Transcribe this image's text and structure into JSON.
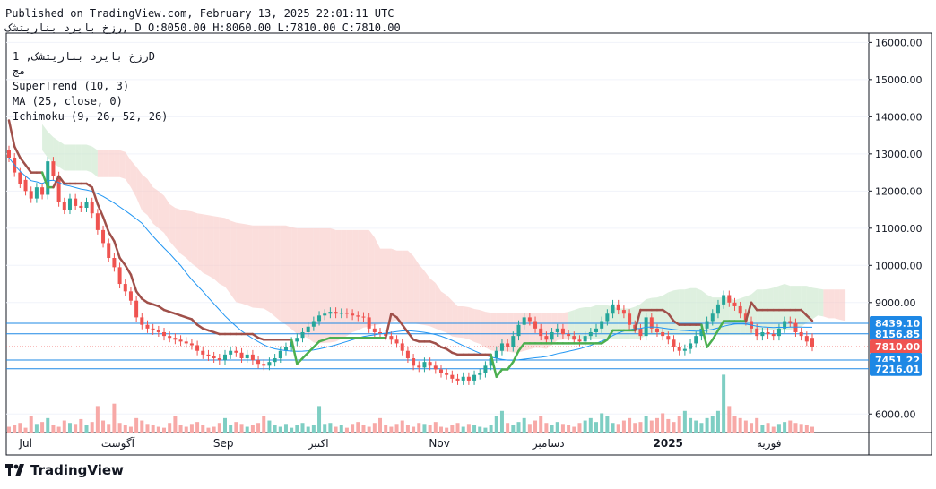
{
  "header": {
    "published": "Published on TradingView.com, February 13, 2025 22:01:11 UTC",
    "ohlc": "رزخ بایرد بناریتشک, D O:8050.00 H:8060.00 L:7810.00 C:7810.00"
  },
  "legend": {
    "symbol_line": "رزخ بایرد بناریتشک, 1D",
    "exchange": "مج",
    "supertrend": "SuperTrend (10, 3)",
    "ma": "MA (25, close, 0)",
    "ichimoku": "Ichimoku (9, 26, 52, 26)"
  },
  "brand": {
    "name": "TradingView"
  },
  "colors": {
    "up": "#26a69a",
    "down": "#ef5350",
    "supertrend_up": "#4caf50",
    "supertrend_down": "#a0504a",
    "ma": "#2196f3",
    "cloud_bear": "#f8c8c4",
    "cloud_bull": "#c8e6c9",
    "hline": "#1e88e5"
  },
  "chart_data": {
    "type": "candlestick",
    "title": "رزخ بایرد بناریتشک, 1D",
    "ylim": [
      5500,
      16250
    ],
    "y_ticks": [
      "16000.00",
      "15000.00",
      "14000.00",
      "13000.00",
      "12000.00",
      "11000.00",
      "10000.00",
      "9000.00",
      "6000.00"
    ],
    "x_labels": [
      "Jul",
      "آگوست",
      "Sep",
      "اکتبر",
      "Nov",
      "دسامبر",
      "2025",
      "فوریه"
    ],
    "price_levels": [
      {
        "label": "8439.10",
        "value": 8439.1,
        "color": "#1e88e5"
      },
      {
        "label": "8156.85",
        "value": 8156.85,
        "color": "#1e88e5"
      },
      {
        "label": "7810.00",
        "value": 7810.0,
        "color": "#ef5350"
      },
      {
        "label": "7451.22",
        "value": 7451.22,
        "color": "#1e88e5"
      },
      {
        "label": "7216.01",
        "value": 7216.01,
        "color": "#1e88e5"
      }
    ],
    "close": [
      12900,
      12500,
      12200,
      12000,
      11800,
      12100,
      11900,
      12800,
      12400,
      11700,
      11500,
      11800,
      11600,
      11550,
      11700,
      11400,
      10950,
      10600,
      10200,
      9950,
      9500,
      9300,
      9050,
      8600,
      8400,
      8300,
      8250,
      8200,
      8100,
      8050,
      8000,
      7950,
      7900,
      7850,
      7700,
      7600,
      7550,
      7500,
      7450,
      7600,
      7700,
      7650,
      7500,
      7600,
      7450,
      7350,
      7300,
      7400,
      7500,
      7700,
      7800,
      7950,
      8050,
      8200,
      8350,
      8500,
      8650,
      8700,
      8750,
      8700,
      8720,
      8700,
      8650,
      8620,
      8600,
      8300,
      8200,
      8150,
      8100,
      8000,
      7900,
      7700,
      7500,
      7300,
      7250,
      7400,
      7300,
      7200,
      7100,
      7050,
      6950,
      6900,
      7000,
      6900,
      7050,
      7100,
      7300,
      7500,
      7700,
      7900,
      7800,
      8100,
      8400,
      8600,
      8500,
      8300,
      8100,
      8000,
      8200,
      8300,
      8150,
      8100,
      8000,
      7950,
      8100,
      8200,
      8300,
      8500,
      8700,
      8950,
      8800,
      8700,
      8400,
      8300,
      8100,
      8600,
      8300,
      8200,
      8100,
      8000,
      7800,
      7700,
      7750,
      7900,
      8100,
      8300,
      8500,
      8700,
      8950,
      9200,
      9000,
      8900,
      8700,
      8500,
      8300,
      8100,
      8200,
      8150,
      8100,
      8300,
      8500,
      8450,
      8200,
      8100,
      7950,
      7810
    ],
    "open": [
      13100,
      12900,
      12500,
      12300,
      12000,
      11800,
      12100,
      11900,
      12800,
      12400,
      11700,
      11500,
      11800,
      11600,
      11550,
      11700,
      11400,
      10950,
      10600,
      10200,
      9950,
      9500,
      9300,
      9050,
      8600,
      8400,
      8300,
      8250,
      8200,
      8100,
      8050,
      8000,
      7950,
      7900,
      7850,
      7700,
      7600,
      7550,
      7500,
      7450,
      7600,
      7700,
      7650,
      7500,
      7600,
      7450,
      7350,
      7300,
      7400,
      7500,
      7700,
      7800,
      7950,
      8050,
      8200,
      8350,
      8500,
      8650,
      8700,
      8750,
      8700,
      8720,
      8700,
      8650,
      8620,
      8600,
      8300,
      8200,
      8150,
      8100,
      8000,
      7900,
      7700,
      7500,
      7300,
      7250,
      7400,
      7300,
      7200,
      7100,
      7050,
      6950,
      6900,
      7000,
      6900,
      7050,
      7100,
      7300,
      7500,
      7700,
      7900,
      7800,
      8100,
      8400,
      8600,
      8500,
      8300,
      8100,
      8000,
      8200,
      8300,
      8150,
      8100,
      8000,
      7950,
      8100,
      8200,
      8300,
      8500,
      8700,
      8950,
      8800,
      8700,
      8400,
      8300,
      8100,
      8600,
      8300,
      8200,
      8100,
      8000,
      7800,
      7700,
      7750,
      7900,
      8100,
      8300,
      8500,
      8700,
      8950,
      9200,
      9000,
      8900,
      8700,
      8500,
      8300,
      8100,
      8200,
      8150,
      8100,
      8300,
      8500,
      8450,
      8200,
      8100,
      8050
    ],
    "volume": [
      0.12,
      0.15,
      0.2,
      0.1,
      0.35,
      0.18,
      0.22,
      0.3,
      0.15,
      0.12,
      0.25,
      0.2,
      0.18,
      0.28,
      0.15,
      0.22,
      0.55,
      0.25,
      0.18,
      0.6,
      0.2,
      0.15,
      0.12,
      0.3,
      0.25,
      0.18,
      0.15,
      0.12,
      0.1,
      0.2,
      0.35,
      0.15,
      0.12,
      0.18,
      0.22,
      0.15,
      0.1,
      0.12,
      0.2,
      0.3,
      0.15,
      0.22,
      0.18,
      0.12,
      0.15,
      0.2,
      0.35,
      0.25,
      0.15,
      0.12,
      0.18,
      0.1,
      0.15,
      0.2,
      0.12,
      0.15,
      0.55,
      0.18,
      0.2,
      0.12,
      0.15,
      0.1,
      0.18,
      0.22,
      0.15,
      0.12,
      0.2,
      0.3,
      0.15,
      0.12,
      0.18,
      0.25,
      0.15,
      0.12,
      0.2,
      0.18,
      0.15,
      0.22,
      0.12,
      0.1,
      0.15,
      0.2,
      0.12,
      0.18,
      0.15,
      0.12,
      0.1,
      0.15,
      0.35,
      0.45,
      0.2,
      0.15,
      0.22,
      0.3,
      0.18,
      0.25,
      0.35,
      0.2,
      0.15,
      0.22,
      0.18,
      0.15,
      0.12,
      0.2,
      0.25,
      0.3,
      0.22,
      0.4,
      0.35,
      0.2,
      0.18,
      0.25,
      0.3,
      0.2,
      0.22,
      0.35,
      0.25,
      0.3,
      0.4,
      0.28,
      0.22,
      0.35,
      0.45,
      0.3,
      0.25,
      0.2,
      0.3,
      0.35,
      0.45,
      1.2,
      0.55,
      0.35,
      0.3,
      0.25,
      0.2,
      0.3,
      0.15,
      0.2,
      0.12,
      0.18,
      0.22,
      0.25,
      0.2,
      0.18,
      0.15,
      0.12
    ]
  }
}
